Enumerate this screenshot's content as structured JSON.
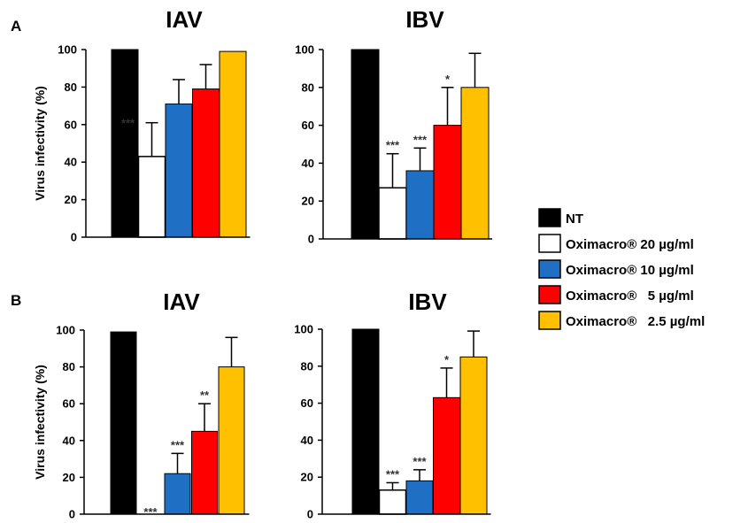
{
  "panels": [
    "A",
    "B"
  ],
  "legend": [
    {
      "label": "NT",
      "color": "#000000"
    },
    {
      "label": "Oximacro® 20 µg/ml",
      "color": "#ffffff"
    },
    {
      "label": "Oximacro® 10 µg/ml",
      "color": "#1f6fc4"
    },
    {
      "label": "Oximacro®   5 µg/ml",
      "color": "#ff0000"
    },
    {
      "label": "Oximacro®   2.5 µg/ml",
      "color": "#ffc000"
    }
  ],
  "chart_data": [
    {
      "type": "bar",
      "panel": "A",
      "title": "IAV",
      "ylabel": "Virus infectivity (%)",
      "ylim": [
        0,
        100
      ],
      "yticks": [
        0,
        20,
        40,
        60,
        80,
        100
      ],
      "values": [
        100,
        43,
        71,
        79,
        99
      ],
      "errors": [
        0,
        18,
        13,
        13,
        0
      ],
      "significance": [
        "",
        "***",
        "",
        "",
        ""
      ]
    },
    {
      "type": "bar",
      "panel": "A",
      "title": "IBV",
      "ylabel": "",
      "ylim": [
        0,
        100
      ],
      "yticks": [
        0,
        20,
        40,
        60,
        80,
        100
      ],
      "values": [
        100,
        27,
        36,
        60,
        80
      ],
      "errors": [
        0,
        18,
        12,
        20,
        18
      ],
      "significance": [
        "",
        "***",
        "***",
        "*",
        ""
      ]
    },
    {
      "type": "bar",
      "panel": "B",
      "title": "IAV",
      "ylabel": "Virus infectivity (%)",
      "ylim": [
        0,
        100
      ],
      "yticks": [
        0,
        20,
        40,
        60,
        80,
        100
      ],
      "values": [
        99,
        0,
        22,
        45,
        80
      ],
      "errors": [
        0,
        0,
        11,
        15,
        16
      ],
      "significance": [
        "",
        "***",
        "***",
        "**",
        ""
      ]
    },
    {
      "type": "bar",
      "panel": "B",
      "title": "IBV",
      "ylabel": "",
      "ylim": [
        0,
        100
      ],
      "yticks": [
        0,
        20,
        40,
        60,
        80,
        100
      ],
      "values": [
        100,
        13,
        18,
        63,
        85
      ],
      "errors": [
        0,
        4,
        6,
        16,
        14
      ],
      "significance": [
        "",
        "***",
        "***",
        "*",
        ""
      ]
    }
  ]
}
